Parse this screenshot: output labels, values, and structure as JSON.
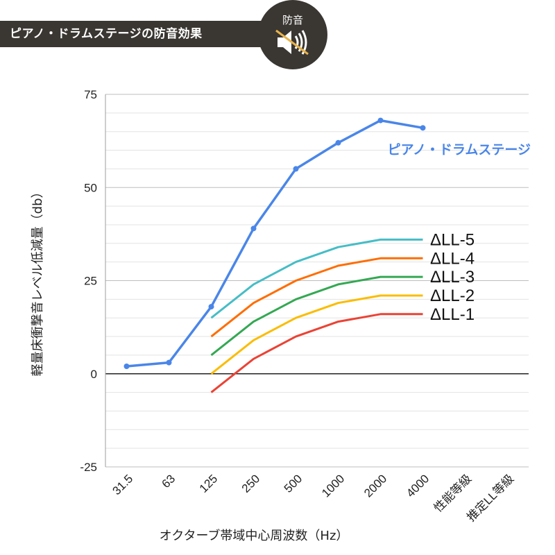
{
  "header": {
    "title": "ピアノ・ドラムステージの防音効果",
    "badge_label": "防音",
    "badge_icon": "muted-speaker-icon"
  },
  "colors": {
    "header_bg": "#3a3632",
    "header_text": "#ffffff",
    "badge_strike": "#e7b24a"
  },
  "chart_data": {
    "type": "line",
    "xlabel": "オクターブ帯域中心周波数（Hz）",
    "ylabel": "軽量床衝撃音レベル低減量（db）",
    "categories": [
      "31.5",
      "63",
      "125",
      "250",
      "500",
      "1000",
      "2000",
      "4000",
      "性能等級",
      "推定LL等級"
    ],
    "ylim": [
      -25,
      75
    ],
    "yticks": [
      75,
      50,
      25,
      0,
      -25
    ],
    "grid": true,
    "series": [
      {
        "name": "ピアノ・ドラムステージ",
        "color": "#4a86e8",
        "markers": true,
        "values": [
          2,
          3,
          18,
          39,
          55,
          62,
          68,
          66,
          null,
          null
        ]
      },
      {
        "name": "ΔLL-5",
        "color": "#46bdc6",
        "markers": false,
        "values": [
          null,
          null,
          15,
          24,
          30,
          34,
          36,
          36,
          null,
          null
        ]
      },
      {
        "name": "ΔLL-4",
        "color": "#ff6d01",
        "markers": false,
        "values": [
          null,
          null,
          10,
          19,
          25,
          29,
          31,
          31,
          null,
          null
        ]
      },
      {
        "name": "ΔLL-3",
        "color": "#34a853",
        "markers": false,
        "values": [
          null,
          null,
          5,
          14,
          20,
          24,
          26,
          26,
          null,
          null
        ]
      },
      {
        "name": "ΔLL-2",
        "color": "#fbbc04",
        "markers": false,
        "values": [
          null,
          null,
          0,
          9,
          15,
          19,
          21,
          21,
          null,
          null
        ]
      },
      {
        "name": "ΔLL-1",
        "color": "#ea4335",
        "markers": false,
        "values": [
          null,
          null,
          -5,
          4,
          10,
          14,
          16,
          16,
          null,
          null
        ]
      }
    ]
  }
}
